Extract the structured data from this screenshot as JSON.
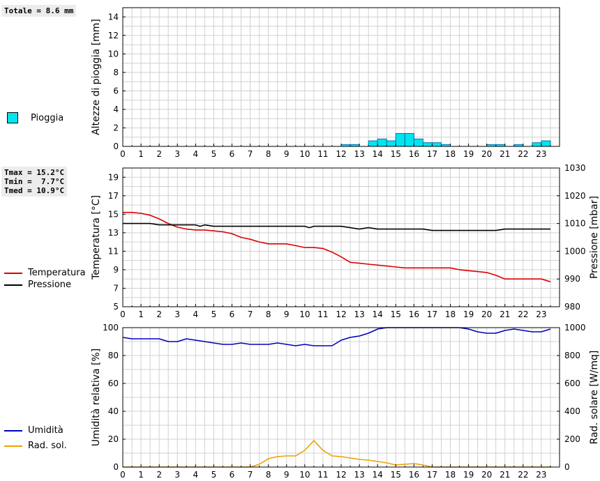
{
  "rain_total": "Totale = 8.6 mm",
  "temp_stats": "Tmax = 15.2°C\nTmin =  7.7°C\nTmed = 10.9°C",
  "legend": {
    "rain": "Pioggia",
    "temperature": "Temperatura",
    "pressure": "Pressione",
    "humidity": "Umidità",
    "radiation": "Rad. sol."
  },
  "colors": {
    "rain": "#00e5ee",
    "temperature": "#dd0000",
    "pressure": "#000000",
    "humidity": "#0000bb",
    "radiation": "#eea000",
    "grid": "#d0d0d0"
  },
  "chart_data": [
    {
      "type": "bar",
      "ylabel": "Altezze di pioggia [mm]",
      "ylim": [
        0,
        15
      ],
      "yticks": [
        0,
        2,
        4,
        6,
        8,
        10,
        12,
        14
      ],
      "xlim": [
        0,
        24
      ],
      "xticks": [
        "0",
        "1",
        "2",
        "3",
        "4",
        "5",
        "6",
        "7",
        "8",
        "9",
        "10",
        "11",
        "12",
        "13",
        "14",
        "15",
        "16",
        "17",
        "18",
        "19",
        "20",
        "21",
        "22",
        "23"
      ],
      "bar_width_h": 0.5,
      "series": [
        {
          "name": "Pioggia",
          "x": [
            12.5,
            13.0,
            14.0,
            14.5,
            15.0,
            15.5,
            16.0,
            16.5,
            17.0,
            17.5,
            18.0,
            20.5,
            21.0,
            22.0,
            23.0,
            23.5
          ],
          "values": [
            0.2,
            0.2,
            0.6,
            0.8,
            0.6,
            1.4,
            1.4,
            0.8,
            0.4,
            0.4,
            0.2,
            0.2,
            0.2,
            0.2,
            0.4,
            0.6
          ]
        }
      ]
    },
    {
      "type": "line",
      "ylabel": "Temperatura [°C]",
      "y2label": "Pressione [mbar]",
      "ylim": [
        5,
        20
      ],
      "yticks": [
        5,
        7,
        9,
        11,
        13,
        15,
        17,
        19
      ],
      "y2lim": [
        980,
        1030
      ],
      "y2ticks": [
        980,
        990,
        1000,
        1010,
        1020,
        1030
      ],
      "xlim": [
        0,
        24
      ],
      "xticks": [
        "0",
        "1",
        "2",
        "3",
        "4",
        "5",
        "6",
        "7",
        "8",
        "9",
        "10",
        "11",
        "12",
        "13",
        "14",
        "15",
        "16",
        "17",
        "18",
        "19",
        "20",
        "21",
        "22",
        "23"
      ],
      "series": [
        {
          "name": "Temperatura",
          "axis": "left",
          "x": [
            0,
            0.5,
            1,
            1.5,
            2,
            2.5,
            3,
            3.5,
            4,
            4.5,
            5,
            5.5,
            6,
            6.5,
            7,
            7.5,
            8,
            8.5,
            9,
            9.5,
            10,
            10.5,
            11,
            11.5,
            12,
            12.5,
            13,
            13.5,
            14,
            14.5,
            15,
            15.5,
            16,
            16.5,
            17,
            17.5,
            18,
            18.5,
            19,
            19.5,
            20,
            20.5,
            21,
            21.5,
            22,
            22.5,
            23,
            23.5
          ],
          "values": [
            15.2,
            15.2,
            15.1,
            14.9,
            14.5,
            14.0,
            13.6,
            13.4,
            13.3,
            13.3,
            13.2,
            13.1,
            12.9,
            12.5,
            12.3,
            12.0,
            11.8,
            11.8,
            11.8,
            11.6,
            11.4,
            11.4,
            11.3,
            10.9,
            10.4,
            9.8,
            9.7,
            9.6,
            9.5,
            9.4,
            9.3,
            9.2,
            9.2,
            9.2,
            9.2,
            9.2,
            9.2,
            9.0,
            8.9,
            8.8,
            8.7,
            8.4,
            8.0,
            8.0,
            8.0,
            8.0,
            8.0,
            7.7
          ]
        },
        {
          "name": "Pressione",
          "axis": "right",
          "x": [
            0,
            0.5,
            1,
            1.5,
            2,
            2.5,
            3,
            3.5,
            4,
            4.25,
            4.5,
            5,
            5.5,
            6,
            6.5,
            7,
            7.5,
            8,
            8.5,
            9,
            9.5,
            10,
            10.25,
            10.5,
            11,
            11.5,
            12,
            12.5,
            13,
            13.5,
            14,
            14.5,
            15,
            15.5,
            16,
            16.5,
            17,
            17.5,
            18,
            18.5,
            19,
            19.5,
            20,
            20.5,
            21,
            21.5,
            22,
            22.5,
            23,
            23.5
          ],
          "values": [
            1010,
            1010,
            1010,
            1010,
            1009.5,
            1009.5,
            1009.5,
            1009.5,
            1009.5,
            1009,
            1009.5,
            1009,
            1009,
            1009,
            1009,
            1009,
            1009,
            1009,
            1009,
            1009,
            1009,
            1009,
            1008.5,
            1009,
            1009,
            1009,
            1009,
            1008.5,
            1008,
            1008.5,
            1008,
            1008,
            1008,
            1008,
            1008,
            1008,
            1007.5,
            1007.5,
            1007.5,
            1007.5,
            1007.5,
            1007.5,
            1007.5,
            1007.5,
            1008,
            1008,
            1008,
            1008,
            1008,
            1008
          ]
        }
      ]
    },
    {
      "type": "line",
      "ylabel": "Umidità relativa [%]",
      "y2label": "Rad. solare [W/mq]",
      "ylim": [
        0,
        100
      ],
      "yticks": [
        0,
        20,
        40,
        60,
        80,
        100
      ],
      "y2lim": [
        0,
        1000
      ],
      "y2ticks": [
        0,
        200,
        400,
        600,
        800,
        1000
      ],
      "xlim": [
        0,
        24
      ],
      "xticks": [
        "0",
        "1",
        "2",
        "3",
        "4",
        "5",
        "6",
        "7",
        "8",
        "9",
        "10",
        "11",
        "12",
        "13",
        "14",
        "15",
        "16",
        "17",
        "18",
        "19",
        "20",
        "21",
        "22",
        "23"
      ],
      "series": [
        {
          "name": "Umidità",
          "axis": "left",
          "x": [
            0,
            0.5,
            1,
            1.5,
            2,
            2.5,
            3,
            3.5,
            4,
            4.5,
            5,
            5.5,
            6,
            6.5,
            7,
            7.5,
            8,
            8.5,
            9,
            9.5,
            10,
            10.5,
            11,
            11.5,
            12,
            12.5,
            13,
            13.5,
            14,
            14.5,
            15,
            15.5,
            16,
            16.5,
            17,
            17.5,
            18,
            18.5,
            19,
            19.5,
            20,
            20.5,
            21,
            21.5,
            22,
            22.5,
            23,
            23.5
          ],
          "values": [
            93,
            92,
            92,
            92,
            92,
            90,
            90,
            92,
            91,
            90,
            89,
            88,
            88,
            89,
            88,
            88,
            88,
            89,
            88,
            87,
            88,
            87,
            87,
            87,
            91,
            93,
            94,
            96,
            99,
            100,
            100,
            100,
            100,
            100,
            100,
            100,
            100,
            100,
            99,
            97,
            96,
            96,
            98,
            99,
            98,
            97,
            97,
            99
          ]
        },
        {
          "name": "Rad. sol.",
          "axis": "right",
          "x": [
            0,
            0.5,
            1,
            1.5,
            2,
            2.5,
            3,
            3.5,
            4,
            4.5,
            5,
            5.5,
            6,
            6.5,
            7,
            7.5,
            8,
            8.5,
            9,
            9.5,
            10,
            10.5,
            11,
            11.5,
            12,
            12.5,
            13,
            13.5,
            14,
            14.5,
            15,
            15.5,
            16,
            16.5,
            17,
            17.5,
            18,
            18.5,
            19,
            19.5,
            20,
            20.5,
            21,
            21.5,
            22,
            22.5,
            23,
            23.5
          ],
          "values": [
            0,
            0,
            0,
            0,
            0,
            0,
            0,
            0,
            0,
            0,
            0,
            0,
            0,
            0,
            0,
            20,
            60,
            75,
            80,
            80,
            120,
            190,
            120,
            80,
            75,
            65,
            55,
            50,
            40,
            30,
            15,
            20,
            25,
            15,
            0,
            0,
            0,
            0,
            0,
            0,
            0,
            0,
            0,
            0,
            0,
            0,
            0,
            0
          ]
        }
      ]
    }
  ]
}
